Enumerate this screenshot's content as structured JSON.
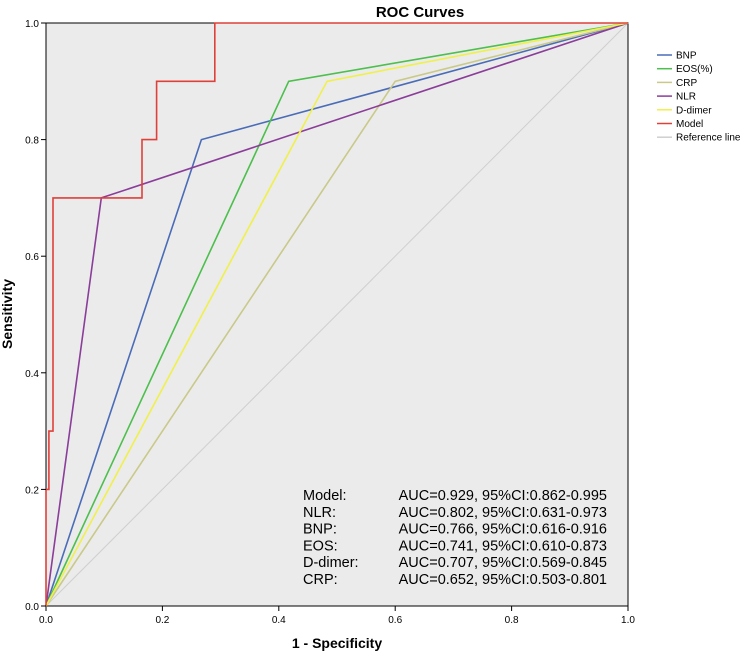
{
  "chart_data": {
    "type": "line",
    "title": "ROC Curves",
    "xlabel": "1 - Specificity",
    "ylabel": "Sensitivity",
    "xlim": [
      0,
      1
    ],
    "ylim": [
      0,
      1
    ],
    "xticks": [
      "0.0",
      "0.2",
      "0.4",
      "0.6",
      "0.8",
      "1.0"
    ],
    "yticks": [
      "0.0",
      "0.2",
      "0.4",
      "0.6",
      "0.8",
      "1.0"
    ],
    "grid": false,
    "plot_background": "#ebebeb",
    "legend_position": "right",
    "series": [
      {
        "name": "BNP",
        "color": "#4a6cb8",
        "points": [
          [
            0,
            0
          ],
          [
            0.267,
            0.8
          ],
          [
            1,
            1
          ]
        ]
      },
      {
        "name": "EOS(%)",
        "color": "#4cbf4c",
        "points": [
          [
            0,
            0
          ],
          [
            0.417,
            0.9
          ],
          [
            1,
            1
          ]
        ]
      },
      {
        "name": "CRP",
        "color": "#c9c98a",
        "points": [
          [
            0,
            0
          ],
          [
            0.6,
            0.9
          ],
          [
            1,
            1
          ]
        ]
      },
      {
        "name": "NLR",
        "color": "#8b3d9a",
        "points": [
          [
            0,
            0
          ],
          [
            0.095,
            0.7
          ],
          [
            1,
            1
          ]
        ]
      },
      {
        "name": "D-dimer",
        "color": "#f0f04a",
        "points": [
          [
            0,
            0
          ],
          [
            0.483,
            0.9
          ],
          [
            1,
            1
          ]
        ]
      },
      {
        "name": "Model",
        "color": "#e0403a",
        "points": [
          [
            0,
            0
          ],
          [
            0,
            0.2
          ],
          [
            0.005,
            0.2
          ],
          [
            0.005,
            0.3
          ],
          [
            0.012,
            0.3
          ],
          [
            0.012,
            0.7
          ],
          [
            0.165,
            0.7
          ],
          [
            0.165,
            0.8
          ],
          [
            0.19,
            0.8
          ],
          [
            0.19,
            0.9
          ],
          [
            0.29,
            0.9
          ],
          [
            0.29,
            1
          ],
          [
            1,
            1
          ]
        ]
      },
      {
        "name": "Reference line",
        "color": "#cfcfcf",
        "points": [
          [
            0,
            0
          ],
          [
            1,
            1
          ]
        ]
      }
    ],
    "annotations": [
      {
        "label": "Model:",
        "text": "AUC=0.929, 95%CI:0.862-0.995"
      },
      {
        "label": "NLR:",
        "text": "AUC=0.802, 95%CI:0.631-0.973"
      },
      {
        "label": "BNP:",
        "text": "AUC=0.766, 95%CI:0.616-0.916"
      },
      {
        "label": "EOS:",
        "text": "AUC=0.741, 95%CI:0.610-0.873"
      },
      {
        "label": "D-dimer:",
        "text": "AUC=0.707, 95%CI:0.569-0.845"
      },
      {
        "label": "CRP:",
        "text": "AUC=0.652, 95%CI:0.503-0.801"
      }
    ]
  }
}
